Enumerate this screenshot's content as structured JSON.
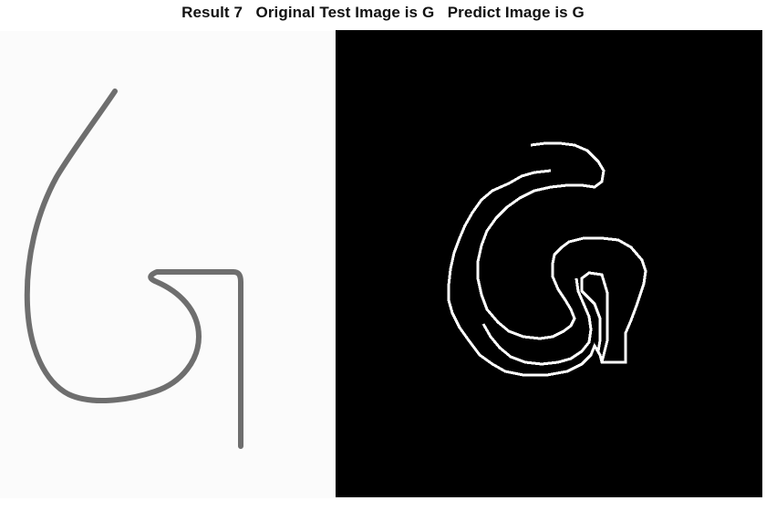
{
  "figure": {
    "title": "Result 7   Original Test Image is G   Predict Image is G",
    "left_image": {
      "subject": "handwritten-letter-G",
      "stroke_color": "#6e6e6e",
      "background_color": "#fbfbfb"
    },
    "right_image": {
      "subject": "predicted-letter-G-outline",
      "stroke_color": "#ffffff",
      "background_color": "#000000"
    }
  }
}
